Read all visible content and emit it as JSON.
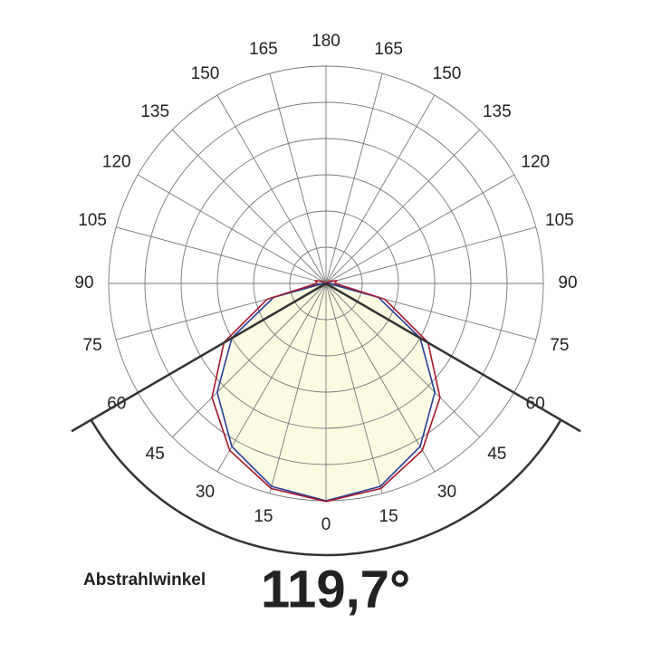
{
  "chart_data": {
    "type": "polar",
    "x": [
      0,
      15,
      30,
      45,
      60,
      75,
      90,
      105,
      120,
      135,
      150,
      165,
      180
    ],
    "xticks": [
      0,
      15,
      30,
      45,
      60,
      75,
      90,
      105,
      120,
      135,
      150,
      165,
      180
    ],
    "rlim": [
      0,
      6
    ],
    "rticks": [
      1,
      2,
      3,
      4,
      5,
      6
    ],
    "grid": true,
    "series": [
      {
        "color": "#2a3d9a",
        "values": [
          6,
          5.8,
          5.2,
          4.25,
          3.0,
          1.5,
          0.1,
          0,
          0,
          0,
          0,
          0,
          0
        ]
      },
      {
        "color": "#a8162a",
        "values": [
          6.02,
          5.86,
          5.32,
          4.45,
          3.25,
          1.68,
          0.25,
          0.3,
          0.12,
          0,
          0,
          0,
          0
        ]
      }
    ],
    "fill": "#fbfbe2",
    "annotation": "Abstrahlwinkel",
    "beam_angle": {
      "value": 119.7,
      "label": "119,7°"
    }
  }
}
